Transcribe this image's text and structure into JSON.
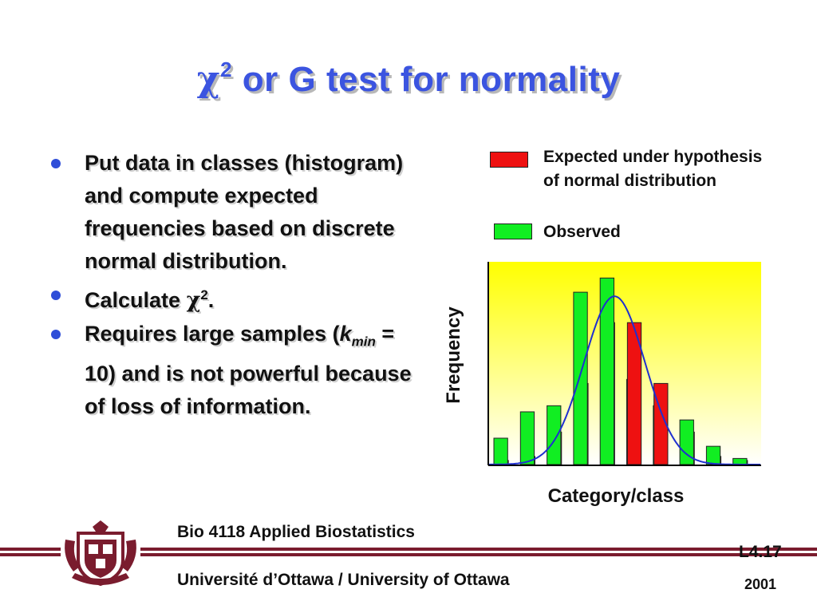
{
  "title": {
    "symbol": "χ",
    "superscript": "2",
    "text": " or G test for normality"
  },
  "bullets": [
    {
      "text": "Put data in classes (histogram) and compute expected frequencies based on discrete normal distribution."
    },
    {
      "prefix": "Calculate ",
      "symbol": "χ",
      "superscript": "2",
      "suffix": "."
    },
    {
      "prefix": "Requires large samples (",
      "var": "k",
      "subscript": "min",
      "suffix": " = 10) and is not powerful because of loss of information."
    }
  ],
  "legend": [
    {
      "label": "Expected under hypothesis of normal distribution",
      "color": "#ee1111"
    },
    {
      "label": "Observed",
      "color": "#11ee22"
    }
  ],
  "chart_data": {
    "type": "bar",
    "xlabel": "Category/class",
    "ylabel": "Frequency",
    "ylim": [
      0,
      100
    ],
    "series": [
      {
        "name": "Expected under hypothesis of normal distribution",
        "color": "#ee1111",
        "values": [
          2,
          4,
          16,
          40,
          70,
          70,
          40,
          16,
          4,
          2
        ]
      },
      {
        "name": "Observed",
        "color": "#11ee22",
        "values": [
          13,
          26,
          29,
          85,
          92,
          42,
          29,
          22,
          9,
          3
        ]
      }
    ],
    "curve_color": "#1f2fd0",
    "background_gradient": [
      "#ffff00",
      "#ffffff"
    ]
  },
  "footer": {
    "course": "Bio 4118 Applied Biostatistics",
    "university": "Université d’Ottawa / University of Ottawa",
    "lecture": "L4.17",
    "year": "2001"
  },
  "colors": {
    "title": "#3b54e0",
    "band": "#7a1c2e",
    "bullet": "#2f4ed8"
  }
}
